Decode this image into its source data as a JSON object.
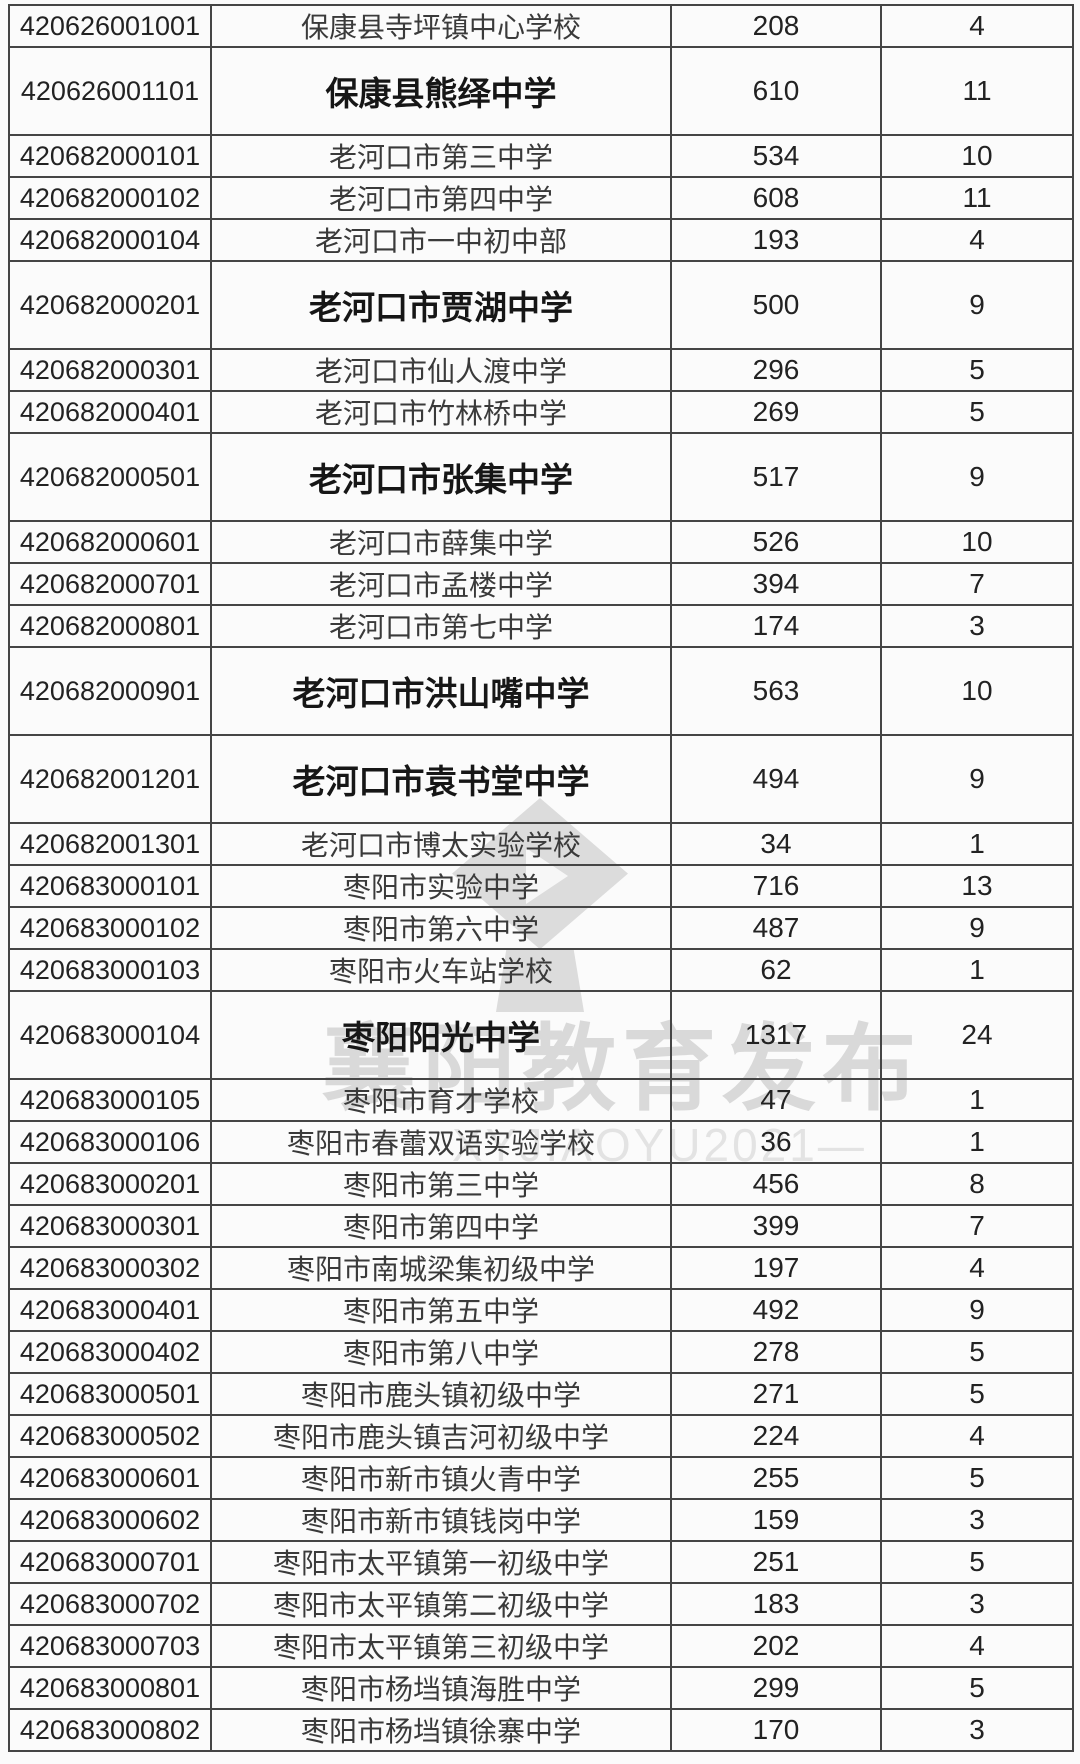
{
  "page": {
    "background_color": "#fbfbfb",
    "grid_border_color": "#454545",
    "text_color": "#222222"
  },
  "watermark": {
    "icon": "graduation-cap-icon",
    "text": "襄阳教育发布",
    "subtext": "XYJIAOYU2021—",
    "text_color": "#d9d9d9"
  },
  "table": {
    "rows": [
      {
        "code": "420626001001",
        "name": "保康县寺坪镇中心学校",
        "v1": "208",
        "v2": "4",
        "bold": false
      },
      {
        "code": "420626001101",
        "name": "保康县熊绎中学",
        "v1": "610",
        "v2": "11",
        "bold": true
      },
      {
        "code": "420682000101",
        "name": "老河口市第三中学",
        "v1": "534",
        "v2": "10",
        "bold": false
      },
      {
        "code": "420682000102",
        "name": "老河口市第四中学",
        "v1": "608",
        "v2": "11",
        "bold": false
      },
      {
        "code": "420682000104",
        "name": "老河口市一中初中部",
        "v1": "193",
        "v2": "4",
        "bold": false
      },
      {
        "code": "420682000201",
        "name": "老河口市贾湖中学",
        "v1": "500",
        "v2": "9",
        "bold": true
      },
      {
        "code": "420682000301",
        "name": "老河口市仙人渡中学",
        "v1": "296",
        "v2": "5",
        "bold": false
      },
      {
        "code": "420682000401",
        "name": "老河口市竹林桥中学",
        "v1": "269",
        "v2": "5",
        "bold": false
      },
      {
        "code": "420682000501",
        "name": "老河口市张集中学",
        "v1": "517",
        "v2": "9",
        "bold": true
      },
      {
        "code": "420682000601",
        "name": "老河口市薛集中学",
        "v1": "526",
        "v2": "10",
        "bold": false
      },
      {
        "code": "420682000701",
        "name": "老河口市孟楼中学",
        "v1": "394",
        "v2": "7",
        "bold": false
      },
      {
        "code": "420682000801",
        "name": "老河口市第七中学",
        "v1": "174",
        "v2": "3",
        "bold": false
      },
      {
        "code": "420682000901",
        "name": "老河口市洪山嘴中学",
        "v1": "563",
        "v2": "10",
        "bold": true
      },
      {
        "code": "420682001201",
        "name": "老河口市袁书堂中学",
        "v1": "494",
        "v2": "9",
        "bold": true
      },
      {
        "code": "420682001301",
        "name": "老河口市博太实验学校",
        "v1": "34",
        "v2": "1",
        "bold": false
      },
      {
        "code": "420683000101",
        "name": "枣阳市实验中学",
        "v1": "716",
        "v2": "13",
        "bold": false
      },
      {
        "code": "420683000102",
        "name": "枣阳市第六中学",
        "v1": "487",
        "v2": "9",
        "bold": false
      },
      {
        "code": "420683000103",
        "name": "枣阳市火车站学校",
        "v1": "62",
        "v2": "1",
        "bold": false
      },
      {
        "code": "420683000104",
        "name": "枣阳阳光中学",
        "v1": "1317",
        "v2": "24",
        "bold": true
      },
      {
        "code": "420683000105",
        "name": "枣阳市育才学校",
        "v1": "47",
        "v2": "1",
        "bold": false
      },
      {
        "code": "420683000106",
        "name": "枣阳市春蕾双语实验学校",
        "v1": "36",
        "v2": "1",
        "bold": false
      },
      {
        "code": "420683000201",
        "name": "枣阳市第三中学",
        "v1": "456",
        "v2": "8",
        "bold": false
      },
      {
        "code": "420683000301",
        "name": "枣阳市第四中学",
        "v1": "399",
        "v2": "7",
        "bold": false
      },
      {
        "code": "420683000302",
        "name": "枣阳市南城梁集初级中学",
        "v1": "197",
        "v2": "4",
        "bold": false
      },
      {
        "code": "420683000401",
        "name": "枣阳市第五中学",
        "v1": "492",
        "v2": "9",
        "bold": false
      },
      {
        "code": "420683000402",
        "name": "枣阳市第八中学",
        "v1": "278",
        "v2": "5",
        "bold": false
      },
      {
        "code": "420683000501",
        "name": "枣阳市鹿头镇初级中学",
        "v1": "271",
        "v2": "5",
        "bold": false
      },
      {
        "code": "420683000502",
        "name": "枣阳市鹿头镇吉河初级中学",
        "v1": "224",
        "v2": "4",
        "bold": false
      },
      {
        "code": "420683000601",
        "name": "枣阳市新市镇火青中学",
        "v1": "255",
        "v2": "5",
        "bold": false
      },
      {
        "code": "420683000602",
        "name": "枣阳市新市镇钱岗中学",
        "v1": "159",
        "v2": "3",
        "bold": false
      },
      {
        "code": "420683000701",
        "name": "枣阳市太平镇第一初级中学",
        "v1": "251",
        "v2": "5",
        "bold": false
      },
      {
        "code": "420683000702",
        "name": "枣阳市太平镇第二初级中学",
        "v1": "183",
        "v2": "3",
        "bold": false
      },
      {
        "code": "420683000703",
        "name": "枣阳市太平镇第三初级中学",
        "v1": "202",
        "v2": "4",
        "bold": false
      },
      {
        "code": "420683000801",
        "name": "枣阳市杨垱镇海胜中学",
        "v1": "299",
        "v2": "5",
        "bold": false
      },
      {
        "code": "420683000802",
        "name": "枣阳市杨垱镇徐寨中学",
        "v1": "170",
        "v2": "3",
        "bold": false
      }
    ]
  }
}
